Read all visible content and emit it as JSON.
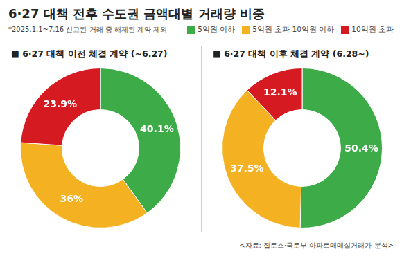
{
  "title": "6·27 대책 전후 수도권 금액대별 거래량 비중",
  "note": "*2025.1.1~7.16 신고된 거래 중 해제된 계약 제외",
  "source": "<자료: 집토스·국토부 아파트매매실거래가 분석>",
  "chart_data": [
    {
      "type": "doughnut",
      "title": "■ 6·27 대책 이전 체결 계약 (~6.27)",
      "categories": [
        "5억원 이하",
        "5억원 초과 10억원 이하",
        "10억원 초과"
      ],
      "values": [
        40.1,
        36,
        23.9
      ],
      "value_labels": [
        "40.1%",
        "36%",
        "23.9%"
      ],
      "colors": [
        "#3dab48",
        "#f4b223",
        "#d61a21"
      ],
      "data_labels": true,
      "legend": "top-right"
    },
    {
      "type": "doughnut",
      "title": "■ 6·27 대책 이후 체결 계약 (6.28~)",
      "categories": [
        "5억원 이하",
        "5억원 초과 10억원 이하",
        "10억원 초과"
      ],
      "values": [
        50.4,
        37.5,
        12.1
      ],
      "value_labels": [
        "50.4%",
        "37.5%",
        "12.1%"
      ],
      "colors": [
        "#3dab48",
        "#f4b223",
        "#d61a21"
      ],
      "data_labels": true
    }
  ]
}
